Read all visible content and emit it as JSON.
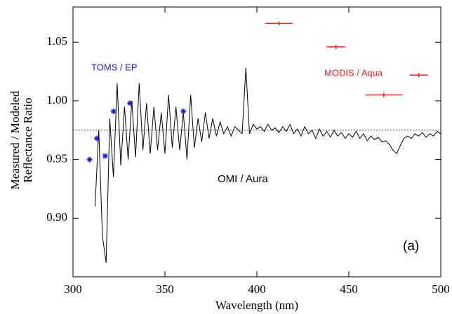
{
  "chart_data": {
    "type": "line",
    "xlabel": "Wavelength (nm)",
    "ylabel": [
      "Measured / Modeled",
      "Reflectance Ratio"
    ],
    "panel_label": "(a)",
    "xlim": [
      300,
      500
    ],
    "ylim": [
      0.85,
      1.08
    ],
    "xticks": [
      300,
      350,
      400,
      450,
      500
    ],
    "yticks": [
      {
        "value": 0.9,
        "label": "0.90"
      },
      0.95,
      {
        "value": 1.0,
        "label": "1.00"
      },
      1.05
    ],
    "reference_line": 0.975,
    "series": [
      {
        "name": "OMI / Aura",
        "type": "line",
        "color": "#000000",
        "x": [
          312,
          314,
          316,
          318,
          320,
          322,
          324,
          326,
          328,
          330,
          332,
          334,
          336,
          338,
          340,
          342,
          344,
          346,
          348,
          350,
          352,
          354,
          356,
          358,
          360,
          362,
          364,
          366,
          368,
          370,
          372,
          374,
          376,
          378,
          380,
          382,
          384,
          386,
          388,
          390,
          392,
          394,
          396,
          398,
          400,
          402,
          404,
          406,
          408,
          410,
          412,
          414,
          416,
          418,
          420,
          422,
          424,
          426,
          428,
          430,
          432,
          434,
          436,
          438,
          440,
          442,
          444,
          446,
          448,
          450,
          452,
          454,
          456,
          458,
          460,
          462,
          464,
          466,
          468,
          470,
          472,
          474,
          476,
          478,
          480,
          482,
          484,
          486,
          488,
          490,
          492,
          494,
          496,
          498,
          500
        ],
        "values": [
          0.91,
          0.975,
          0.885,
          0.862,
          0.985,
          0.935,
          1.015,
          0.945,
          0.995,
          0.95,
          1.0,
          0.952,
          1.015,
          0.958,
          0.998,
          0.955,
          0.995,
          0.958,
          0.99,
          0.955,
          1.005,
          0.96,
          0.995,
          0.958,
          0.99,
          0.95,
          1.005,
          0.96,
          0.985,
          0.965,
          0.99,
          0.968,
          0.985,
          0.97,
          0.982,
          0.972,
          0.978,
          0.97,
          0.978,
          0.975,
          0.972,
          1.028,
          0.972,
          0.98,
          0.976,
          0.978,
          0.974,
          0.98,
          0.975,
          0.977,
          0.973,
          0.978,
          0.974,
          0.98,
          0.972,
          0.976,
          0.97,
          0.978,
          0.972,
          0.975,
          0.968,
          0.976,
          0.97,
          0.974,
          0.969,
          0.975,
          0.97,
          0.973,
          0.968,
          0.972,
          0.969,
          0.974,
          0.968,
          0.972,
          0.966,
          0.97,
          0.967,
          0.969,
          0.965,
          0.966,
          0.963,
          0.958,
          0.955,
          0.962,
          0.968,
          0.97,
          0.968,
          0.972,
          0.97,
          0.973,
          0.969,
          0.972,
          0.97,
          0.974,
          0.972
        ]
      },
      {
        "name": "TOMS / EP",
        "type": "scatter",
        "color": "#1a1aff",
        "x": [
          309,
          313,
          317.5,
          322,
          331,
          360
        ],
        "values": [
          0.95,
          0.968,
          0.953,
          0.991,
          0.998,
          0.991
        ]
      },
      {
        "name": "MODIS / Aqua",
        "type": "errorbar",
        "color": "#ff2020",
        "x": [
          412,
          443,
          469,
          488
        ],
        "x_err": [
          7.5,
          5,
          10,
          5
        ],
        "values": [
          1.066,
          1.046,
          1.005,
          1.022
        ]
      }
    ]
  }
}
